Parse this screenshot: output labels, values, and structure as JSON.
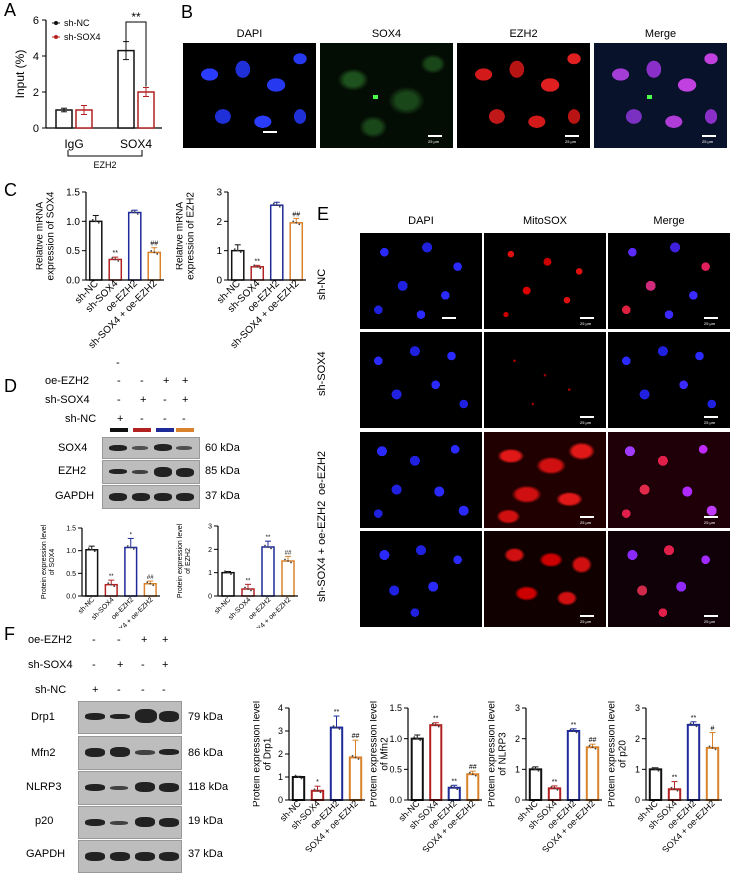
{
  "panels": {
    "A": "A",
    "B": "B",
    "C": "C",
    "D": "D",
    "E": "E",
    "F": "F"
  },
  "colors": {
    "black": "#111111",
    "red": "#b22222",
    "blue": "#1f2a99",
    "orange": "#d9822b"
  },
  "panelB": {
    "titles": [
      "DAPI",
      "SOX4",
      "EZH2",
      "Merge"
    ],
    "scale": "25 μm"
  },
  "panelE": {
    "titles": [
      "DAPI",
      "MitoSOX",
      "Merge"
    ],
    "rows": [
      "sh-NC",
      "sh-SOX4",
      "oe-EZH2",
      "sh-SOX4 + oe-EZH2"
    ],
    "scale": "25 μm"
  },
  "wbD": {
    "conditions": [
      {
        "label": "oe-EZH2",
        "marks": [
          "-",
          "-",
          "+",
          "+"
        ]
      },
      {
        "label": "sh-SOX4",
        "marks": [
          "-",
          "+",
          "-",
          "+"
        ]
      },
      {
        "label": "sh-NC",
        "marks": [
          "+",
          "-",
          "-",
          "-"
        ]
      }
    ],
    "stray_dash": "-",
    "proteins": [
      {
        "name": "SOX4",
        "kda": "60 kDa"
      },
      {
        "name": "EZH2",
        "kda": "85 kDa"
      },
      {
        "name": "GAPDH",
        "kda": "37 kDa"
      }
    ]
  },
  "wbF": {
    "conditions": [
      {
        "label": "oe-EZH2",
        "marks": [
          "-",
          "-",
          "+",
          "+"
        ]
      },
      {
        "label": "sh-SOX4",
        "marks": [
          "-",
          "+",
          "-",
          "+"
        ]
      },
      {
        "label": "sh-NC",
        "marks": [
          "+",
          "-",
          "-",
          "-"
        ]
      }
    ],
    "proteins": [
      {
        "name": "Drp1",
        "kda": "79 kDa"
      },
      {
        "name": "Mfn2",
        "kda": "86 kDa"
      },
      {
        "name": "NLRP3",
        "kda": "118 kDa"
      },
      {
        "name": "p20",
        "kda": "19 kDa"
      },
      {
        "name": "GAPDH",
        "kda": "37 kDa"
      }
    ]
  },
  "chart_data": [
    {
      "id": "A",
      "type": "bar",
      "ylabel": "Input (%)",
      "ylim": [
        0,
        6
      ],
      "yticks": [
        "0",
        "2",
        "4",
        "6"
      ],
      "categories": [
        "IgG",
        "SOX4"
      ],
      "group_label": "EZH2",
      "series": [
        {
          "name": "sh-NC",
          "color": "#111111",
          "values": [
            1.0,
            4.3
          ],
          "errors": [
            0.1,
            0.5
          ]
        },
        {
          "name": "sh-SOX4",
          "color": "#b22222",
          "values": [
            1.0,
            2.0
          ],
          "errors": [
            0.25,
            0.25
          ]
        }
      ],
      "annotation": "**"
    },
    {
      "id": "C1",
      "type": "bar",
      "ylabel": "Relative mRNA expression of SOX4",
      "ylim": [
        0,
        1.5
      ],
      "yticks": [
        "0.0",
        "0.5",
        "1.0",
        "1.5"
      ],
      "categories": [
        "sh-NC",
        "sh-SOX4",
        "oe-EZH2",
        "sh-SOX4 + oe-EZH2"
      ],
      "values": [
        1.0,
        0.35,
        1.15,
        0.47
      ],
      "errors": [
        0.1,
        0.04,
        0.04,
        0.08
      ],
      "marks": [
        "",
        "**",
        "",
        "##"
      ]
    },
    {
      "id": "C2",
      "type": "bar",
      "ylabel": "Relative mRNA expression of EZH2",
      "ylim": [
        0,
        3
      ],
      "yticks": [
        "0",
        "1",
        "2",
        "3"
      ],
      "categories": [
        "sh-NC",
        "sh-SOX4",
        "oe-EZH2",
        "sh-SOX4 + oe-EZH2"
      ],
      "values": [
        1.0,
        0.45,
        2.55,
        1.95
      ],
      "errors": [
        0.2,
        0.05,
        0.1,
        0.15
      ],
      "marks": [
        "",
        "**",
        "",
        "##"
      ]
    },
    {
      "id": "D1",
      "type": "bar",
      "ylabel": "Protein expression level of SOX4",
      "ylim": [
        0,
        1.5
      ],
      "yticks": [
        "0.0",
        "0.5",
        "1.0",
        "1.5"
      ],
      "categories": [
        "sh-NC",
        "sh-SOX4",
        "oe-EZH2",
        "sh-SOX4 + oe-EZH2"
      ],
      "values": [
        1.02,
        0.25,
        1.07,
        0.27
      ],
      "errors": [
        0.08,
        0.1,
        0.2,
        0.06
      ],
      "marks": [
        "",
        "**",
        "*",
        "##"
      ]
    },
    {
      "id": "D2",
      "type": "bar",
      "ylabel": "Protein expression level of EZH2",
      "ylim": [
        0,
        3
      ],
      "yticks": [
        "0",
        "1",
        "2",
        "3"
      ],
      "categories": [
        "sh-NC",
        "sh-SOX4",
        "oe-EZH2",
        "sh-SOX4 + oe-EZH2"
      ],
      "values": [
        1.0,
        0.3,
        2.1,
        1.5
      ],
      "errors": [
        0.05,
        0.2,
        0.25,
        0.2
      ],
      "marks": [
        "",
        "**",
        "**",
        "##"
      ]
    },
    {
      "id": "F1",
      "type": "bar",
      "ylabel": "Protein expression level of Drp1",
      "ylim": [
        0,
        4
      ],
      "yticks": [
        "0",
        "1",
        "2",
        "3",
        "4"
      ],
      "categories": [
        "sh-NC",
        "sh-SOX4",
        "oe-EZH2",
        "sh-SOX4 + oe-EZH2"
      ],
      "values": [
        1.0,
        0.4,
        3.15,
        1.85
      ],
      "errors": [
        0.03,
        0.2,
        0.5,
        0.75
      ],
      "marks": [
        "",
        "*",
        "**",
        "##"
      ]
    },
    {
      "id": "F2",
      "type": "bar",
      "ylabel": "Protein expression level of Mfn2",
      "ylim": [
        0,
        1.5
      ],
      "yticks": [
        "0.0",
        "0.5",
        "1.0",
        "1.5"
      ],
      "categories": [
        "sh-NC",
        "sh-SOX4",
        "oe-EZH2",
        "sh-SOX4 + oe-EZH2"
      ],
      "values": [
        1.0,
        1.22,
        0.2,
        0.42
      ],
      "errors": [
        0.06,
        0.04,
        0.04,
        0.05
      ],
      "marks": [
        "",
        "**",
        "**",
        "##"
      ]
    },
    {
      "id": "F3",
      "type": "bar",
      "ylabel": "Protein expression level of NLRP3",
      "ylim": [
        0,
        3
      ],
      "yticks": [
        "0",
        "1",
        "2",
        "3"
      ],
      "categories": [
        "sh-NC",
        "sh-SOX4",
        "oe-EZH2",
        "sh-SOX4 + oe-EZH2"
      ],
      "values": [
        1.0,
        0.38,
        2.25,
        1.72
      ],
      "errors": [
        0.08,
        0.08,
        0.07,
        0.1
      ],
      "marks": [
        "",
        "**",
        "**",
        "##"
      ]
    },
    {
      "id": "F4",
      "type": "bar",
      "ylabel": "Protein expression level of p20",
      "ylim": [
        0,
        3
      ],
      "yticks": [
        "0",
        "1",
        "2",
        "3"
      ],
      "categories": [
        "sh-NC",
        "sh-SOX4",
        "oe-EZH2",
        "sh-SOX4 + oe-EZH2"
      ],
      "values": [
        1.0,
        0.35,
        2.45,
        1.7
      ],
      "errors": [
        0.05,
        0.25,
        0.1,
        0.5
      ],
      "marks": [
        "",
        "**",
        "**",
        "#"
      ]
    }
  ]
}
